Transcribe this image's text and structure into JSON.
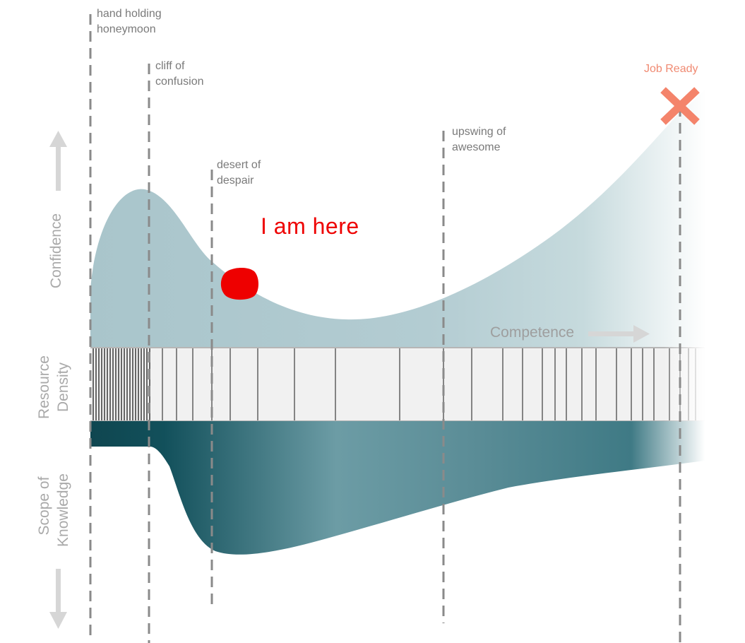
{
  "phases": [
    {
      "id": "honeymoon",
      "line1": "hand holding",
      "line2": "honeymoon"
    },
    {
      "id": "cliff",
      "line1": "cliff of",
      "line2": "confusion"
    },
    {
      "id": "desert",
      "line1": "desert of",
      "line2": "despair"
    },
    {
      "id": "upswing",
      "line1": "upswing of",
      "line2": "awesome"
    }
  ],
  "goal_label": "Job Ready",
  "marker_label": "I am here",
  "axes": {
    "confidence": "Confidence",
    "resource_density_line1": "Resource",
    "resource_density_line2": "Density",
    "scope_line1": "Scope of",
    "scope_line2": "Knowledge",
    "competence": "Competence"
  },
  "colors": {
    "confidence_fill": "#a9c5cb",
    "knowledge_fill": "#1f5d69",
    "marker": "#ee0000",
    "goal": "#f4846b",
    "dashed_line": "#8a8a8a",
    "arrow": "#d6d6d6"
  }
}
